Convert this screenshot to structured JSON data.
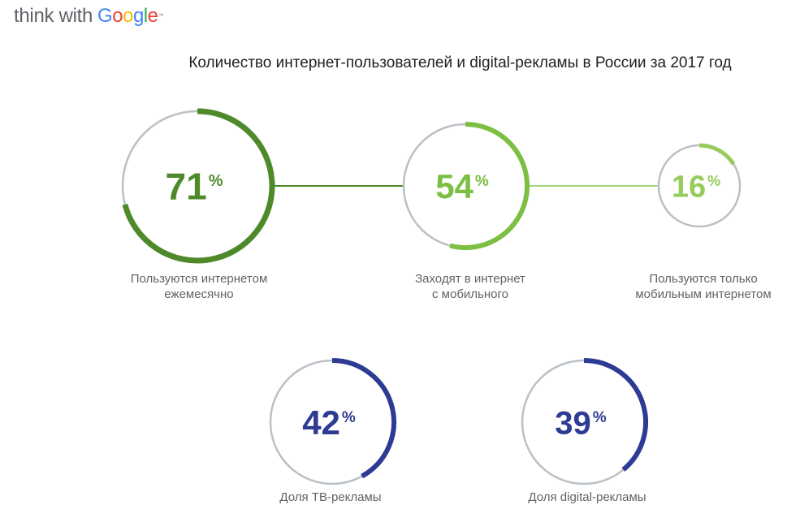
{
  "header": {
    "logo_think": "think with",
    "logo_brand_letters": [
      {
        "char": "G",
        "color": "#4285F4"
      },
      {
        "char": "o",
        "color": "#EA4335"
      },
      {
        "char": "o",
        "color": "#FBBC05"
      },
      {
        "char": "g",
        "color": "#4285F4"
      },
      {
        "char": "l",
        "color": "#34A853"
      },
      {
        "char": "e",
        "color": "#EA4335"
      }
    ],
    "logo_tm": "™"
  },
  "chart_data": {
    "type": "radial-progress",
    "title": "Количество интернет-пользователей и digital-рекламы в России за 2017 год",
    "unit": "%",
    "track_color": "#b9c0c6",
    "items": [
      {
        "value": 71,
        "label": "Пользуются интернетом\nежемесячно",
        "color": "#4f8a2a"
      },
      {
        "value": 54,
        "label": "Заходят в интернет\nс мобильного",
        "color": "#7cbf42"
      },
      {
        "value": 16,
        "label": "Пользуются только\nмобильным интернетом",
        "color": "#95cc5c"
      },
      {
        "value": 42,
        "label": "Доля ТВ-рекламы",
        "color": "#2e3b94"
      },
      {
        "value": 39,
        "label": "Доля digital-рекламы",
        "color": "#2e3b94"
      }
    ],
    "connectors": [
      {
        "from": 0,
        "to": 1,
        "color": "#4f8a2a"
      },
      {
        "from": 1,
        "to": 2,
        "color": "#a6d67b"
      }
    ]
  }
}
